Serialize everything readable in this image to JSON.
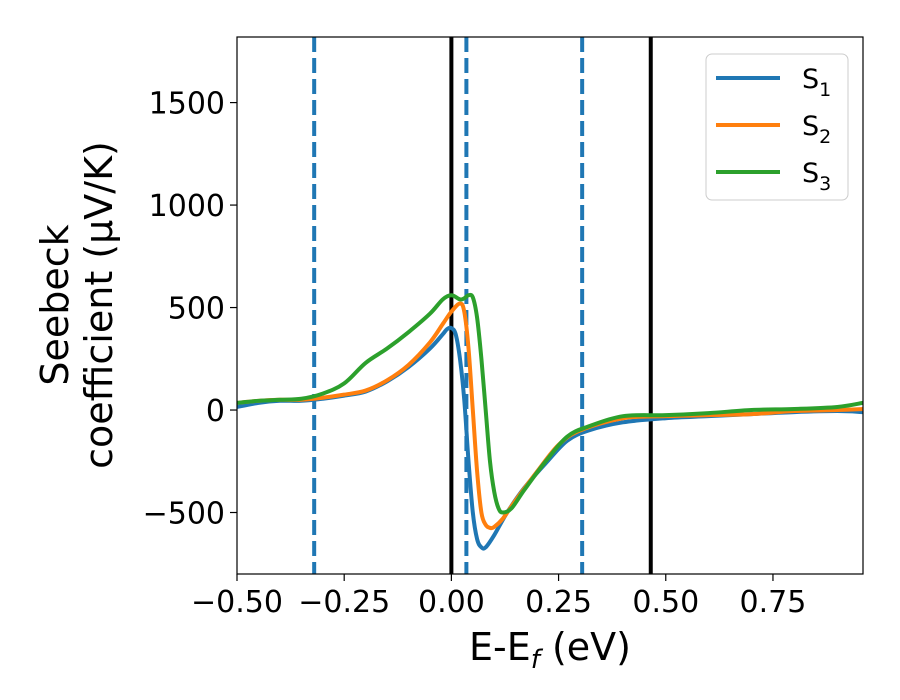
{
  "chart_data": {
    "type": "line",
    "xlabel": "E-E",
    "xlabel_sub": "f",
    "xlabel_unit": " (eV)",
    "ylabel_line1": "Seebeck",
    "ylabel_line2": "coefficient  (μV/K)",
    "xlim": [
      -0.5,
      0.96
    ],
    "ylim": [
      -800,
      1820
    ],
    "x_ticks": [
      -0.5,
      -0.25,
      0.0,
      0.25,
      0.5,
      0.75
    ],
    "x_tick_labels": [
      "−0.50",
      "−0.25",
      "0.00",
      "0.25",
      "0.50",
      "0.75"
    ],
    "y_ticks": [
      -500,
      0,
      500,
      1000,
      1500
    ],
    "y_tick_labels": [
      "−500",
      "0",
      "500",
      "1000",
      "1500"
    ],
    "grid": false,
    "legend_position": "top-right",
    "vertical_lines": [
      {
        "x": -0.32,
        "style": "dashed",
        "color": "#1f77b4"
      },
      {
        "x": 0.035,
        "style": "dashed",
        "color": "#1f77b4"
      },
      {
        "x": 0.305,
        "style": "dashed",
        "color": "#1f77b4"
      },
      {
        "x": 0.0,
        "style": "solid",
        "color": "#000000"
      },
      {
        "x": 0.465,
        "style": "solid",
        "color": "#000000"
      }
    ],
    "series": [
      {
        "name": "S",
        "sub": "1",
        "color": "#1f77b4",
        "points": [
          [
            -0.5,
            15
          ],
          [
            -0.45,
            35
          ],
          [
            -0.4,
            45
          ],
          [
            -0.35,
            45
          ],
          [
            -0.3,
            55
          ],
          [
            -0.25,
            70
          ],
          [
            -0.2,
            90
          ],
          [
            -0.15,
            140
          ],
          [
            -0.1,
            210
          ],
          [
            -0.05,
            300
          ],
          [
            -0.02,
            370
          ],
          [
            -0.01,
            395
          ],
          [
            0.0,
            400
          ],
          [
            0.01,
            370
          ],
          [
            0.02,
            250
          ],
          [
            0.03,
            50
          ],
          [
            0.04,
            -250
          ],
          [
            0.05,
            -500
          ],
          [
            0.06,
            -630
          ],
          [
            0.07,
            -670
          ],
          [
            0.08,
            -670
          ],
          [
            0.1,
            -610
          ],
          [
            0.13,
            -500
          ],
          [
            0.17,
            -380
          ],
          [
            0.22,
            -260
          ],
          [
            0.27,
            -150
          ],
          [
            0.32,
            -100
          ],
          [
            0.4,
            -60
          ],
          [
            0.5,
            -40
          ],
          [
            0.6,
            -30
          ],
          [
            0.7,
            -20
          ],
          [
            0.8,
            -10
          ],
          [
            0.9,
            -5
          ],
          [
            0.96,
            -10
          ]
        ]
      },
      {
        "name": "S",
        "sub": "2",
        "color": "#ff7f0e",
        "points": [
          [
            -0.5,
            35
          ],
          [
            -0.45,
            45
          ],
          [
            -0.4,
            50
          ],
          [
            -0.35,
            50
          ],
          [
            -0.3,
            60
          ],
          [
            -0.25,
            75
          ],
          [
            -0.2,
            95
          ],
          [
            -0.15,
            145
          ],
          [
            -0.1,
            220
          ],
          [
            -0.05,
            330
          ],
          [
            -0.02,
            420
          ],
          [
            0.0,
            480
          ],
          [
            0.02,
            520
          ],
          [
            0.03,
            480
          ],
          [
            0.04,
            300
          ],
          [
            0.05,
            0
          ],
          [
            0.06,
            -300
          ],
          [
            0.07,
            -500
          ],
          [
            0.08,
            -560
          ],
          [
            0.09,
            -575
          ],
          [
            0.1,
            -570
          ],
          [
            0.12,
            -530
          ],
          [
            0.15,
            -440
          ],
          [
            0.2,
            -300
          ],
          [
            0.25,
            -170
          ],
          [
            0.3,
            -100
          ],
          [
            0.4,
            -40
          ],
          [
            0.5,
            -30
          ],
          [
            0.6,
            -25
          ],
          [
            0.7,
            -20
          ],
          [
            0.8,
            -5
          ],
          [
            0.9,
            0
          ],
          [
            0.96,
            5
          ]
        ]
      },
      {
        "name": "S",
        "sub": "3",
        "color": "#2ca02c",
        "points": [
          [
            -0.5,
            35
          ],
          [
            -0.45,
            45
          ],
          [
            -0.4,
            50
          ],
          [
            -0.35,
            55
          ],
          [
            -0.3,
            80
          ],
          [
            -0.25,
            130
          ],
          [
            -0.2,
            230
          ],
          [
            -0.15,
            300
          ],
          [
            -0.1,
            380
          ],
          [
            -0.05,
            470
          ],
          [
            -0.02,
            540
          ],
          [
            0.0,
            560
          ],
          [
            0.02,
            540
          ],
          [
            0.03,
            545
          ],
          [
            0.04,
            560
          ],
          [
            0.05,
            550
          ],
          [
            0.06,
            450
          ],
          [
            0.07,
            250
          ],
          [
            0.08,
            0
          ],
          [
            0.09,
            -250
          ],
          [
            0.1,
            -400
          ],
          [
            0.11,
            -480
          ],
          [
            0.12,
            -500
          ],
          [
            0.14,
            -480
          ],
          [
            0.17,
            -390
          ],
          [
            0.22,
            -250
          ],
          [
            0.27,
            -130
          ],
          [
            0.32,
            -80
          ],
          [
            0.4,
            -30
          ],
          [
            0.5,
            -25
          ],
          [
            0.6,
            -15
          ],
          [
            0.7,
            0
          ],
          [
            0.8,
            5
          ],
          [
            0.9,
            15
          ],
          [
            0.96,
            35
          ]
        ]
      }
    ]
  }
}
